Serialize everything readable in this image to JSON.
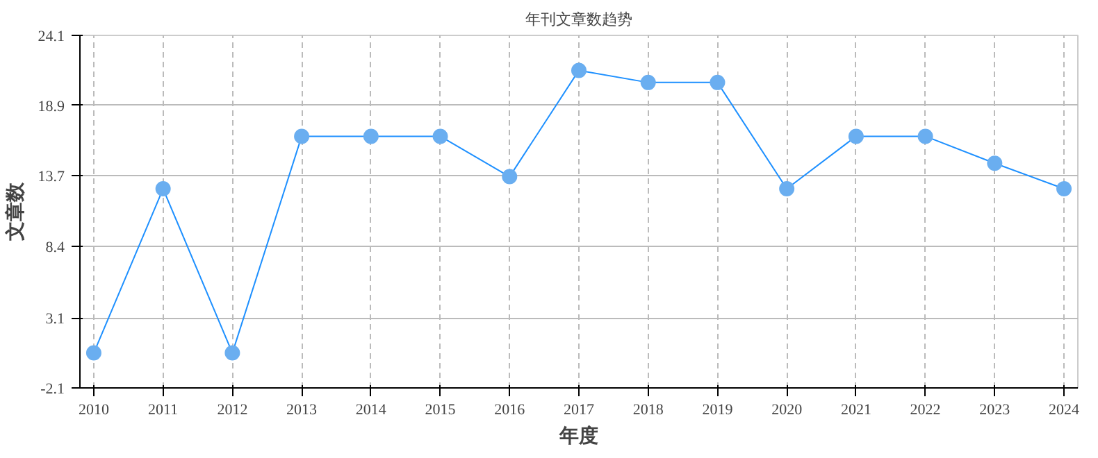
{
  "chart_data": {
    "type": "line",
    "title": "年刊文章数趋势",
    "xlabel": "年度",
    "ylabel": "文章数",
    "categories": [
      "2010",
      "2011",
      "2012",
      "2013",
      "2014",
      "2015",
      "2016",
      "2017",
      "2018",
      "2019",
      "2020",
      "2021",
      "2022",
      "2023",
      "2024"
    ],
    "series": [
      {
        "color": "#1e90ff",
        "values": [
          0.5,
          12.7,
          0.5,
          16.6,
          16.6,
          16.6,
          13.6,
          21.5,
          20.6,
          20.6,
          12.7,
          16.6,
          16.6,
          14.6,
          12.7
        ]
      }
    ],
    "ylim": [
      -2.1,
      24.1
    ],
    "yticks": [
      -2.1,
      3.1,
      8.4,
      13.7,
      18.9,
      24.1
    ],
    "grid": true,
    "marker": "circle",
    "line_style": "solid"
  }
}
